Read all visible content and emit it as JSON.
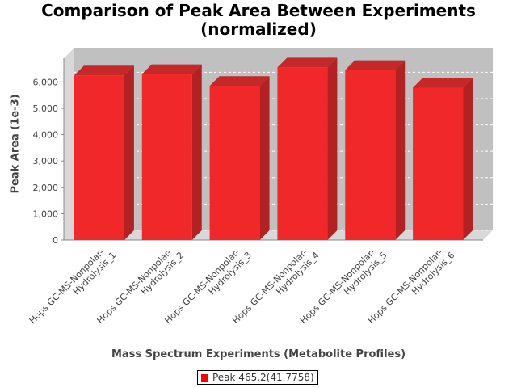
{
  "chart_data": {
    "type": "bar",
    "title_line1": "Comparison of Peak Area Between Experiments",
    "title_line2": "(normalized)",
    "xlabel": "Mass Spectrum Experiments (Metabolite Profiles)",
    "ylabel": "Peak Area (1e-3)",
    "categories": [
      [
        "Hops GC-MS-Nonpolar-",
        "Hydrolysis_1"
      ],
      [
        "Hops GC-MS-Nonpolar-",
        "Hydrolysis_2"
      ],
      [
        "Hops GC-MS-Nonpolar-",
        "Hydrolysis_3"
      ],
      [
        "Hops GC-MS-Nonpolar-",
        "Hydrolysis_4"
      ],
      [
        "Hops GC-MS-Nonpolar-",
        "Hydrolysis_5"
      ],
      [
        "Hops GC-MS-Nonpolar-",
        "Hydrolysis_6"
      ]
    ],
    "series": [
      {
        "name": "Peak 465.2(41.7758)",
        "values": [
          6250,
          6300,
          5850,
          6550,
          6450,
          5780
        ]
      }
    ],
    "yticks": [
      0,
      1000,
      2000,
      3000,
      4000,
      5000,
      6000
    ],
    "ytick_labels": [
      "0",
      "1,000",
      "2,000",
      "3,000",
      "4,000",
      "5,000",
      "6,000"
    ],
    "ylim": [
      0,
      6900
    ],
    "grid": true,
    "legend_position": "bottom",
    "colors": {
      "bar": "#ff0000",
      "plot_background": "#c0c0c0",
      "plot_side": "#d8d8d8"
    }
  }
}
